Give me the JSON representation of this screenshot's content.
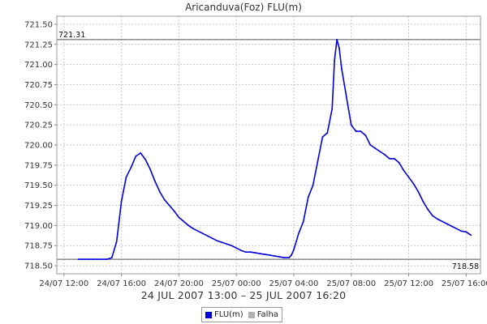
{
  "chart_data": {
    "type": "line",
    "title": "Aricanduva(Foz) FLU(m)",
    "xlabel": "24 JUL 2007 13:00 – 25 JUL 2007 16:20",
    "ylabel": "",
    "ylim": [
      718.4,
      721.6
    ],
    "y_ticks": [
      "718.50",
      "718.75",
      "719.00",
      "719.25",
      "719.50",
      "719.75",
      "720.00",
      "720.25",
      "720.50",
      "720.75",
      "721.00",
      "721.25",
      "721.50"
    ],
    "x_ticks": [
      "24/07 12:00",
      "24/07 16:00",
      "24/07 20:00",
      "25/07 00:00",
      "25/07 04:00",
      "25/07 08:00",
      "25/07 12:00",
      "25/07 16:00"
    ],
    "grid": true,
    "reference_lines": [
      {
        "label": "721.31",
        "value": 721.31,
        "label_position": "left"
      },
      {
        "label": "718.58",
        "value": 718.58,
        "label_position": "right"
      }
    ],
    "series": [
      {
        "name": "FLU(m)",
        "color": "#0000dd",
        "points": [
          [
            "24/07 13:00",
            718.58
          ],
          [
            "24/07 14:00",
            718.58
          ],
          [
            "24/07 15:00",
            718.58
          ],
          [
            "24/07 15:20",
            718.6
          ],
          [
            "24/07 15:40",
            718.8
          ],
          [
            "24/07 16:00",
            719.3
          ],
          [
            "24/07 16:20",
            719.6
          ],
          [
            "24/07 16:40",
            719.72
          ],
          [
            "24/07 17:00",
            719.86
          ],
          [
            "24/07 17:20",
            719.9
          ],
          [
            "24/07 17:40",
            719.82
          ],
          [
            "24/07 18:00",
            719.7
          ],
          [
            "24/07 18:20",
            719.55
          ],
          [
            "24/07 18:40",
            719.42
          ],
          [
            "24/07 19:00",
            719.32
          ],
          [
            "24/07 19:20",
            719.25
          ],
          [
            "24/07 19:40",
            719.18
          ],
          [
            "24/07 20:00",
            719.1
          ],
          [
            "24/07 20:20",
            719.05
          ],
          [
            "24/07 20:40",
            719.0
          ],
          [
            "24/07 21:00",
            718.96
          ],
          [
            "24/07 21:20",
            718.93
          ],
          [
            "24/07 21:40",
            718.9
          ],
          [
            "24/07 22:00",
            718.87
          ],
          [
            "24/07 22:20",
            718.84
          ],
          [
            "24/07 22:40",
            718.81
          ],
          [
            "24/07 23:00",
            718.79
          ],
          [
            "24/07 23:20",
            718.77
          ],
          [
            "24/07 23:40",
            718.75
          ],
          [
            "25/07 00:00",
            718.72
          ],
          [
            "25/07 00:20",
            718.69
          ],
          [
            "25/07 00:40",
            718.67
          ],
          [
            "25/07 01:00",
            718.67
          ],
          [
            "25/07 01:20",
            718.66
          ],
          [
            "25/07 01:40",
            718.65
          ],
          [
            "25/07 02:00",
            718.64
          ],
          [
            "25/07 02:20",
            718.63
          ],
          [
            "25/07 02:40",
            718.62
          ],
          [
            "25/07 03:00",
            718.61
          ],
          [
            "25/07 03:20",
            718.6
          ],
          [
            "25/07 03:40",
            718.6
          ],
          [
            "25/07 03:50",
            718.63
          ],
          [
            "25/07 04:00",
            718.7
          ],
          [
            "25/07 04:20",
            718.9
          ],
          [
            "25/07 04:40",
            719.05
          ],
          [
            "25/07 05:00",
            719.35
          ],
          [
            "25/07 05:20",
            719.5
          ],
          [
            "25/07 05:40",
            719.8
          ],
          [
            "25/07 06:00",
            720.1
          ],
          [
            "25/07 06:20",
            720.15
          ],
          [
            "25/07 06:40",
            720.45
          ],
          [
            "25/07 06:50",
            721.05
          ],
          [
            "25/07 07:00",
            721.31
          ],
          [
            "25/07 07:10",
            721.2
          ],
          [
            "25/07 07:20",
            720.95
          ],
          [
            "25/07 07:40",
            720.6
          ],
          [
            "25/07 08:00",
            720.25
          ],
          [
            "25/07 08:20",
            720.17
          ],
          [
            "25/07 08:40",
            720.17
          ],
          [
            "25/07 09:00",
            720.12
          ],
          [
            "25/07 09:20",
            720.0
          ],
          [
            "25/07 09:40",
            719.96
          ],
          [
            "25/07 10:00",
            719.92
          ],
          [
            "25/07 10:20",
            719.88
          ],
          [
            "25/07 10:40",
            719.83
          ],
          [
            "25/07 11:00",
            719.83
          ],
          [
            "25/07 11:20",
            719.78
          ],
          [
            "25/07 11:40",
            719.68
          ],
          [
            "25/07 12:00",
            719.6
          ],
          [
            "25/07 12:20",
            719.52
          ],
          [
            "25/07 12:40",
            719.42
          ],
          [
            "25/07 13:00",
            719.3
          ],
          [
            "25/07 13:20",
            719.2
          ],
          [
            "25/07 13:40",
            719.12
          ],
          [
            "25/07 14:00",
            719.08
          ],
          [
            "25/07 14:20",
            719.05
          ],
          [
            "25/07 14:40",
            719.02
          ],
          [
            "25/07 15:00",
            718.99
          ],
          [
            "25/07 15:20",
            718.96
          ],
          [
            "25/07 15:40",
            718.93
          ],
          [
            "25/07 16:00",
            718.92
          ],
          [
            "25/07 16:10",
            718.9
          ],
          [
            "25/07 16:20",
            718.88
          ]
        ]
      },
      {
        "name": "Falha",
        "color": "#b0b0b0",
        "points": []
      }
    ],
    "legend": {
      "position": "bottom-center",
      "items": [
        "FLU(m)",
        "Falha"
      ]
    }
  }
}
